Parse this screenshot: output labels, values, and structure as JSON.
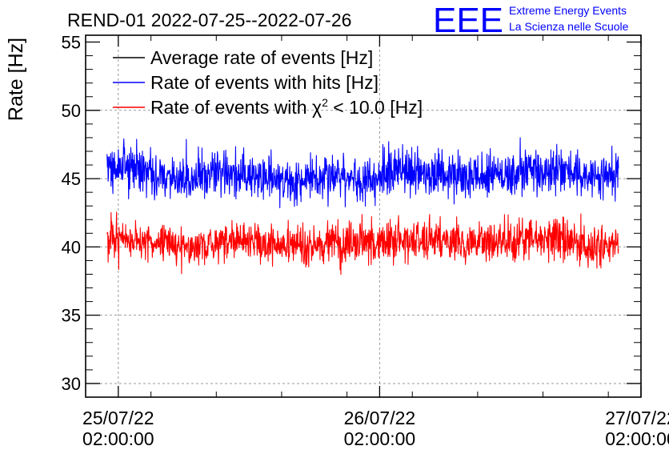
{
  "chart_data": {
    "type": "line",
    "title": "REND-01 2022-07-25--2022-07-26",
    "ylabel": "Rate [Hz]",
    "xlabel": "",
    "ylim": [
      29,
      55.5
    ],
    "xlim": [
      "2022-07-24 23:00:00",
      "2022-07-27 02:00:00"
    ],
    "yticks": [
      30,
      35,
      40,
      45,
      50,
      55
    ],
    "xticks": [
      {
        "date": "25/07/22",
        "time": "02:00:00",
        "at": "2022-07-25 02:00:00"
      },
      {
        "date": "26/07/22",
        "time": "02:00:00",
        "at": "2022-07-26 02:00:00"
      },
      {
        "date": "27/07/22",
        "time": "02:00:00",
        "at": "2022-07-27 02:00:00"
      }
    ],
    "grid": true,
    "legend_position": "top-left",
    "series": [
      {
        "name": "Average rate of events [Hz]",
        "color": "#000000",
        "x_range": [],
        "values": []
      },
      {
        "name": "Rate of events with hits [Hz]",
        "color": "#0000ff",
        "x_range": [
          "2022-07-25 00:58:00",
          "2022-07-26 23:56:00"
        ],
        "values": [
          45.6,
          45.8,
          45.4,
          45.1,
          44.9,
          45.5,
          45.3,
          45.0,
          44.8,
          44.7,
          45.2,
          44.9,
          45.2,
          45.6,
          45.3,
          45.4,
          45.2,
          45.3,
          45.1,
          45.6,
          45.5,
          45.4,
          45.0,
          45.3
        ],
        "noise": 1.1,
        "max": 48.4,
        "min": 42.2
      },
      {
        "name_parts": [
          "Rate of events with ",
          "χ",
          "2",
          " < 10.0 [Hz]"
        ],
        "color": "#ff0000",
        "x_range": [
          "2022-07-25 00:58:00",
          "2022-07-26 23:56:00"
        ],
        "values": [
          40.4,
          40.6,
          40.3,
          40.1,
          40.0,
          40.5,
          40.4,
          40.2,
          40.0,
          40.0,
          40.3,
          40.1,
          40.4,
          40.6,
          40.4,
          40.5,
          40.3,
          40.4,
          40.3,
          40.6,
          40.6,
          40.5,
          40.2,
          40.4
        ],
        "noise": 0.95,
        "max": 42.7,
        "min": 37.6
      }
    ]
  },
  "logo": {
    "mark": "EEE",
    "line1": "Extreme Energy Events",
    "line2": "La Scienza nelle Scuole",
    "color": "#0000ff"
  }
}
